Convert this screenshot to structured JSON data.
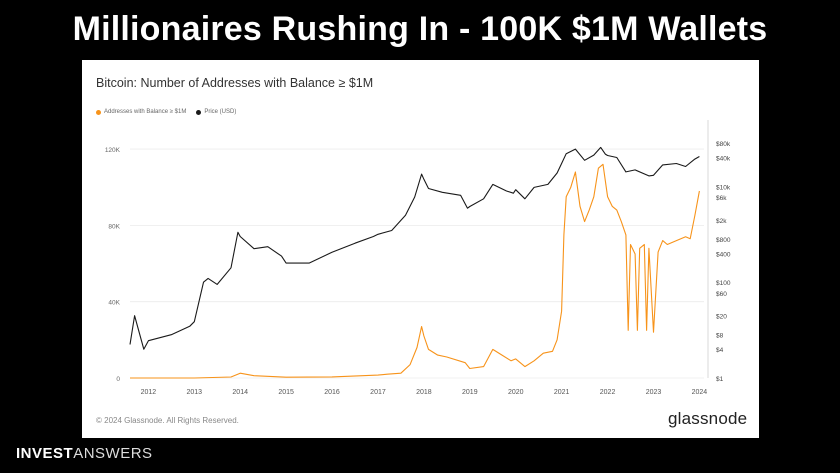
{
  "headline": "Millionaires Rushing In - 100K $1M Wallets",
  "colors": {
    "addresses": "#f7931a",
    "price": "#1a1a1a",
    "grid": "#ececec"
  },
  "chart_data": {
    "type": "line",
    "title": "Bitcoin: Number of Addresses with Balance ≥ $1M",
    "legend_position": "top-left",
    "x_ticks": [
      "2012",
      "2013",
      "2014",
      "2015",
      "2016",
      "2017",
      "2018",
      "2019",
      "2020",
      "2021",
      "2022",
      "2023",
      "2024"
    ],
    "y_left": {
      "ticks": [
        "0",
        "40K",
        "80K",
        "120K"
      ],
      "tick_values": [
        0,
        40000,
        80000,
        120000
      ],
      "range": [
        0,
        130000
      ]
    },
    "y_right": {
      "scale": "log",
      "ticks": [
        "$80k",
        "$40k",
        "$10k",
        "$6k",
        "$2k",
        "$800",
        "$400",
        "$100",
        "$60",
        "$20",
        "$8",
        "$4",
        "$1"
      ],
      "tick_values": [
        80000,
        40000,
        10000,
        6000,
        2000,
        800,
        400,
        100,
        60,
        20,
        8,
        4,
        1
      ],
      "range": [
        1,
        150000
      ]
    },
    "series": [
      {
        "name": "Addresses with Balance ≥ $1M",
        "axis": "left",
        "points": [
          [
            2011.6,
            0
          ],
          [
            2013.0,
            20
          ],
          [
            2013.8,
            500
          ],
          [
            2014.0,
            2500
          ],
          [
            2014.3,
            1200
          ],
          [
            2015.0,
            400
          ],
          [
            2016.0,
            600
          ],
          [
            2017.0,
            1500
          ],
          [
            2017.2,
            2000
          ],
          [
            2017.5,
            2500
          ],
          [
            2017.7,
            7000
          ],
          [
            2017.85,
            16000
          ],
          [
            2017.95,
            27000
          ],
          [
            2018.0,
            22000
          ],
          [
            2018.1,
            15000
          ],
          [
            2018.3,
            12000
          ],
          [
            2018.5,
            11000
          ],
          [
            2018.9,
            8000
          ],
          [
            2019.0,
            5000
          ],
          [
            2019.3,
            6000
          ],
          [
            2019.5,
            15000
          ],
          [
            2019.7,
            12000
          ],
          [
            2019.9,
            9000
          ],
          [
            2020.0,
            10000
          ],
          [
            2020.2,
            6000
          ],
          [
            2020.4,
            9000
          ],
          [
            2020.6,
            13000
          ],
          [
            2020.8,
            14000
          ],
          [
            2020.9,
            20000
          ],
          [
            2021.0,
            35000
          ],
          [
            2021.05,
            75000
          ],
          [
            2021.1,
            95000
          ],
          [
            2021.2,
            100000
          ],
          [
            2021.3,
            108000
          ],
          [
            2021.4,
            90000
          ],
          [
            2021.5,
            82000
          ],
          [
            2021.6,
            88000
          ],
          [
            2021.7,
            95000
          ],
          [
            2021.8,
            110000
          ],
          [
            2021.9,
            112000
          ],
          [
            2022.0,
            95000
          ],
          [
            2022.1,
            90000
          ],
          [
            2022.2,
            88000
          ],
          [
            2022.3,
            82000
          ],
          [
            2022.4,
            75000
          ],
          [
            2022.45,
            25000
          ],
          [
            2022.5,
            70000
          ],
          [
            2022.6,
            65000
          ],
          [
            2022.65,
            25000
          ],
          [
            2022.7,
            68000
          ],
          [
            2022.8,
            70000
          ],
          [
            2022.85,
            25000
          ],
          [
            2022.9,
            68000
          ],
          [
            2023.0,
            24000
          ],
          [
            2023.1,
            66000
          ],
          [
            2023.2,
            72000
          ],
          [
            2023.3,
            70000
          ],
          [
            2023.5,
            72000
          ],
          [
            2023.7,
            74000
          ],
          [
            2023.8,
            73000
          ],
          [
            2023.9,
            85000
          ],
          [
            2024.0,
            98000
          ]
        ]
      },
      {
        "name": "Price (USD)",
        "axis": "right",
        "points": [
          [
            2011.6,
            5
          ],
          [
            2011.7,
            20
          ],
          [
            2011.9,
            4
          ],
          [
            2012.0,
            6
          ],
          [
            2012.5,
            8
          ],
          [
            2012.9,
            12
          ],
          [
            2013.0,
            15
          ],
          [
            2013.2,
            100
          ],
          [
            2013.3,
            120
          ],
          [
            2013.5,
            90
          ],
          [
            2013.8,
            200
          ],
          [
            2013.95,
            1100
          ],
          [
            2014.0,
            900
          ],
          [
            2014.3,
            500
          ],
          [
            2014.6,
            550
          ],
          [
            2014.9,
            350
          ],
          [
            2015.0,
            250
          ],
          [
            2015.5,
            250
          ],
          [
            2015.9,
            380
          ],
          [
            2016.0,
            420
          ],
          [
            2016.5,
            650
          ],
          [
            2016.9,
            900
          ],
          [
            2017.0,
            1000
          ],
          [
            2017.3,
            1200
          ],
          [
            2017.6,
            2500
          ],
          [
            2017.8,
            6000
          ],
          [
            2017.95,
            18000
          ],
          [
            2018.0,
            14000
          ],
          [
            2018.1,
            9000
          ],
          [
            2018.4,
            7500
          ],
          [
            2018.8,
            6500
          ],
          [
            2018.95,
            3500
          ],
          [
            2019.0,
            3800
          ],
          [
            2019.3,
            5500
          ],
          [
            2019.5,
            11000
          ],
          [
            2019.8,
            8000
          ],
          [
            2019.95,
            7200
          ],
          [
            2020.0,
            8500
          ],
          [
            2020.2,
            5500
          ],
          [
            2020.4,
            9500
          ],
          [
            2020.7,
            11000
          ],
          [
            2020.9,
            19000
          ],
          [
            2021.0,
            30000
          ],
          [
            2021.1,
            48000
          ],
          [
            2021.3,
            60000
          ],
          [
            2021.5,
            35000
          ],
          [
            2021.7,
            45000
          ],
          [
            2021.85,
            65000
          ],
          [
            2021.95,
            47000
          ],
          [
            2022.0,
            44000
          ],
          [
            2022.2,
            40000
          ],
          [
            2022.4,
            20000
          ],
          [
            2022.6,
            22000
          ],
          [
            2022.9,
            16500
          ],
          [
            2023.0,
            17000
          ],
          [
            2023.2,
            28000
          ],
          [
            2023.5,
            30000
          ],
          [
            2023.7,
            26000
          ],
          [
            2023.9,
            37000
          ],
          [
            2024.0,
            42000
          ]
        ]
      }
    ],
    "annotations": [
      "© 2024 Glassnode. All Rights Reserved."
    ],
    "brand": "glassnode"
  },
  "logo": {
    "bold": "INVEST",
    "light": "ANSWERS"
  }
}
